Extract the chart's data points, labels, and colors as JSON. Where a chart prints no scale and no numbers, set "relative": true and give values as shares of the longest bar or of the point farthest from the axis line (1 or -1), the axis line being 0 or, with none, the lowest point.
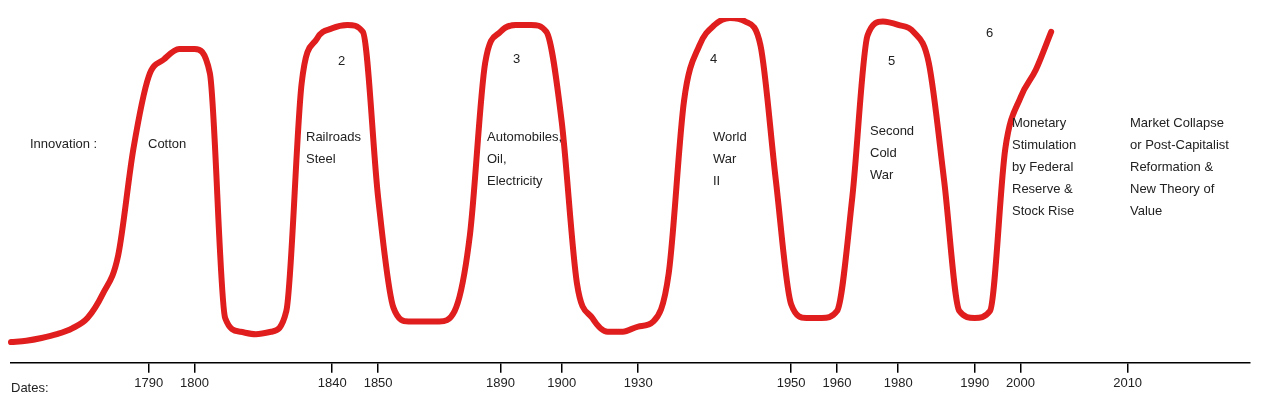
{
  "chart_data": {
    "type": "line",
    "relative": true,
    "xlabel": "Dates:",
    "color": "#e01e1e",
    "categories": [
      null,
      null,
      null,
      null,
      null,
      null,
      null,
      null,
      null,
      "1790",
      null,
      null,
      "1800",
      null,
      null,
      null,
      null,
      null,
      null,
      null,
      null,
      "1840",
      null,
      null,
      "1850",
      null,
      null,
      null,
      null,
      null,
      null,
      null,
      "1890",
      null,
      null,
      null,
      "1900",
      null,
      null,
      null,
      null,
      "1930",
      null,
      null,
      null,
      null,
      null,
      null,
      null,
      null,
      null,
      "1950",
      null,
      null,
      "1960",
      null,
      null,
      null,
      "1980",
      null,
      null,
      null,
      null,
      "1990",
      null,
      null,
      "2000",
      null,
      null,
      null,
      null,
      null,
      null,
      "2010",
      null,
      null,
      null,
      null,
      null,
      null,
      null,
      null
    ],
    "values": [
      0.06,
      0.064,
      0.072,
      0.083,
      0.1,
      0.13,
      0.2,
      0.31,
      0.62,
      0.83,
      0.88,
      0.91,
      0.91,
      0.84,
      0.13,
      0.09,
      0.083,
      0.09,
      0.15,
      0.81,
      0.94,
      0.97,
      0.98,
      0.96,
      0.48,
      0.16,
      0.12,
      0.12,
      0.12,
      0.15,
      0.37,
      0.87,
      0.96,
      0.98,
      0.98,
      0.96,
      0.7,
      0.23,
      0.13,
      0.09,
      0.09,
      0.105,
      0.12,
      0.26,
      0.76,
      0.92,
      0.98,
      1,
      0.99,
      0.92,
      0.53,
      0.17,
      0.13,
      0.13,
      0.15,
      0.48,
      0.95,
      0.99,
      0.98,
      0.96,
      0.87,
      0.53,
      0.15,
      0.13,
      0.15,
      0.62,
      0.77,
      0.85,
      0.96,
      null,
      null,
      null,
      null,
      null,
      null,
      null,
      null,
      null,
      null,
      null,
      null,
      null
    ],
    "annotations": [
      "Innovation :",
      "Cotton",
      "2",
      "Railroads\nSteel",
      "3",
      "Automobiles,\nOil,\nElectricity",
      "4",
      "World\nWar\nII",
      "5",
      "Second\nCold\nWar",
      "6",
      "Monetary\nStimulation\nby Federal\nReserve &\nStock Rise",
      "Market Collapse\nor Post-Capitalist\nReformation &\nNew Theory of\nValue"
    ]
  }
}
